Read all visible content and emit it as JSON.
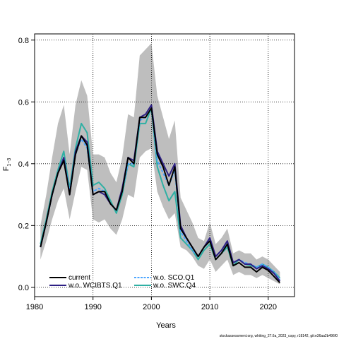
{
  "chart_data": {
    "type": "line",
    "xlabel": "Years",
    "ylabel": "F",
    "ylabel_sub": "1−3",
    "xlim": [
      1980,
      2024.5
    ],
    "ylim": [
      -0.03,
      0.82
    ],
    "xticks": [
      1980,
      1990,
      2000,
      2010,
      2020
    ],
    "yticks": [
      0.0,
      0.2,
      0.4,
      0.6,
      0.8
    ],
    "ytick_labels": [
      "0.0",
      "0.2",
      "0.4",
      "0.6",
      "0.8"
    ],
    "grid": true,
    "grid_style": "dotted",
    "legend_position": "bottom-left",
    "footnote": "stockassessment.org, whiting_27.6a_2023_copy, r18142, git:e36aa2b496f0",
    "x": [
      1981,
      1982,
      1983,
      1984,
      1985,
      1986,
      1987,
      1988,
      1989,
      1990,
      1991,
      1992,
      1993,
      1994,
      1995,
      1996,
      1997,
      1998,
      1999,
      2000,
      2001,
      2002,
      2003,
      2004,
      2005,
      2006,
      2007,
      2008,
      2009,
      2010,
      2011,
      2012,
      2013,
      2014,
      2015,
      2016,
      2017,
      2018,
      2019,
      2020,
      2021,
      2022
    ],
    "band": {
      "lower": [
        0.09,
        0.15,
        0.22,
        0.28,
        0.32,
        0.22,
        0.31,
        0.39,
        0.38,
        0.22,
        0.21,
        0.22,
        0.19,
        0.17,
        0.22,
        0.3,
        0.29,
        0.42,
        0.44,
        0.45,
        0.31,
        0.26,
        0.22,
        0.24,
        0.13,
        0.12,
        0.1,
        0.07,
        0.06,
        0.09,
        0.05,
        0.07,
        0.09,
        0.04,
        0.05,
        0.04,
        0.04,
        0.03,
        0.04,
        0.03,
        0.02,
        0.01
      ],
      "upper": [
        0.2,
        0.3,
        0.42,
        0.53,
        0.59,
        0.43,
        0.59,
        0.67,
        0.62,
        0.43,
        0.43,
        0.42,
        0.37,
        0.34,
        0.42,
        0.56,
        0.55,
        0.75,
        0.77,
        0.79,
        0.62,
        0.55,
        0.48,
        0.54,
        0.29,
        0.25,
        0.21,
        0.16,
        0.15,
        0.21,
        0.14,
        0.16,
        0.19,
        0.11,
        0.12,
        0.11,
        0.11,
        0.09,
        0.1,
        0.09,
        0.07,
        0.05
      ]
    },
    "series": [
      {
        "name": "current",
        "color": "#000000",
        "dash": "",
        "values": [
          0.13,
          0.21,
          0.3,
          0.37,
          0.41,
          0.3,
          0.43,
          0.49,
          0.46,
          0.3,
          0.31,
          0.31,
          0.27,
          0.25,
          0.31,
          0.42,
          0.4,
          0.55,
          0.55,
          0.58,
          0.43,
          0.39,
          0.33,
          0.39,
          0.19,
          0.16,
          0.13,
          0.1,
          0.13,
          0.15,
          0.09,
          0.11,
          0.14,
          0.07,
          0.08,
          0.065,
          0.065,
          0.05,
          0.065,
          0.055,
          0.035,
          0.015
        ]
      },
      {
        "name": "w.o. WCIBTS.Q1",
        "color": "#2d1f84",
        "dash": "",
        "values": [
          0.13,
          0.21,
          0.3,
          0.37,
          0.42,
          0.3,
          0.44,
          0.49,
          0.47,
          0.3,
          0.31,
          0.3,
          0.27,
          0.25,
          0.32,
          0.42,
          0.41,
          0.55,
          0.56,
          0.59,
          0.44,
          0.4,
          0.36,
          0.4,
          0.2,
          0.16,
          0.13,
          0.1,
          0.13,
          0.16,
          0.1,
          0.12,
          0.15,
          0.08,
          0.09,
          0.075,
          0.075,
          0.06,
          0.07,
          0.06,
          0.045,
          0.02
        ]
      },
      {
        "name": "w.o. SCO.Q1",
        "color": "#4da6ff",
        "dash": "4,2",
        "values": [
          0.13,
          0.21,
          0.3,
          0.37,
          0.42,
          0.31,
          0.43,
          0.48,
          0.45,
          0.31,
          0.32,
          0.31,
          0.27,
          0.25,
          0.31,
          0.4,
          0.4,
          0.54,
          0.55,
          0.58,
          0.41,
          0.37,
          0.33,
          0.38,
          0.18,
          0.15,
          0.12,
          0.1,
          0.13,
          0.15,
          0.1,
          0.12,
          0.14,
          0.08,
          0.09,
          0.08,
          0.075,
          0.065,
          0.075,
          0.065,
          0.05,
          0.025
        ]
      },
      {
        "name": "w.o. SWC.Q4",
        "color": "#2fb0a4",
        "dash": "",
        "values": [
          0.14,
          0.22,
          0.31,
          0.38,
          0.44,
          0.32,
          0.45,
          0.53,
          0.5,
          0.33,
          0.34,
          0.32,
          0.28,
          0.24,
          0.3,
          0.4,
          0.39,
          0.53,
          0.53,
          0.58,
          0.39,
          0.33,
          0.28,
          0.31,
          0.16,
          0.14,
          0.12,
          0.09,
          0.12,
          0.14,
          0.09,
          0.11,
          0.13,
          0.07,
          0.09,
          0.075,
          0.07,
          0.065,
          0.075,
          0.065,
          0.05,
          0.03
        ]
      }
    ]
  }
}
